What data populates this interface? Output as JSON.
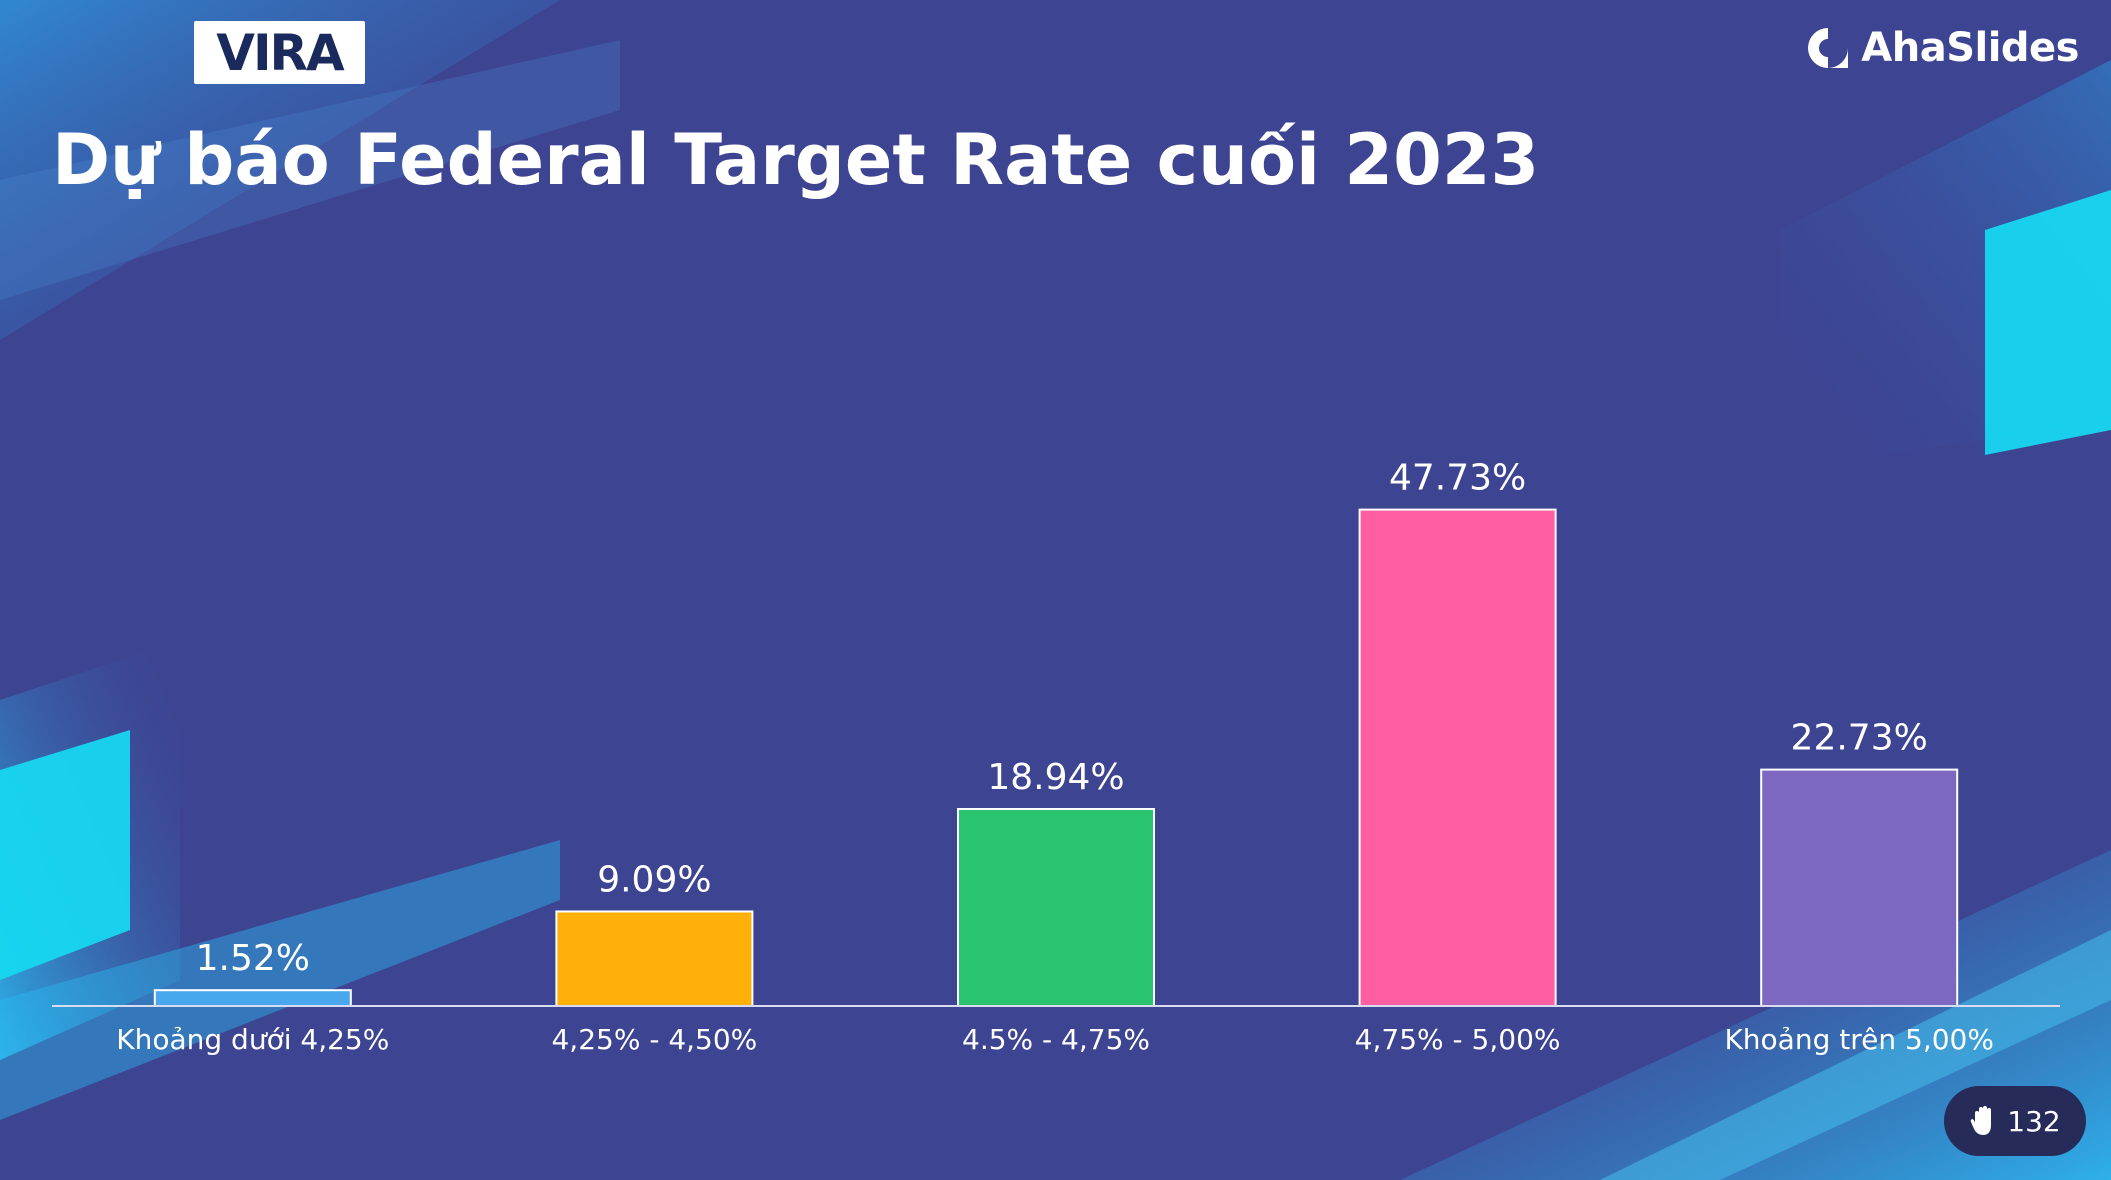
{
  "header": {
    "vira_logo_text": "VIRA",
    "brand_name": "AhaSlides",
    "title": "Dự báo Federal Target Rate cuối 2023"
  },
  "colors": {
    "background": "#3d4492",
    "accent_cyan": "#17d7f0",
    "baseline": "#d9dcf0"
  },
  "footer": {
    "response_icon": "raised-hand-icon",
    "response_count": "132"
  },
  "chart_data": {
    "type": "bar",
    "title": "Dự báo Federal Target Rate cuối 2023",
    "xlabel": "",
    "ylabel": "",
    "unit": "%",
    "ylim": [
      0,
      50
    ],
    "grid": false,
    "categories": [
      "Khoảng dưới 4,25%",
      "4,25% - 4,50%",
      "4.5% - 4,75%",
      "4,75% - 5,00%",
      "Khoảng trên 5,00%"
    ],
    "values": [
      1.52,
      9.09,
      18.94,
      47.73,
      22.73
    ],
    "value_labels": [
      "1.52%",
      "9.09%",
      "18.94%",
      "47.73%",
      "22.73%"
    ],
    "bar_colors": [
      "#49a8ed",
      "#ffb10a",
      "#2bc46e",
      "#ff5fa2",
      "#7c68c1"
    ]
  }
}
